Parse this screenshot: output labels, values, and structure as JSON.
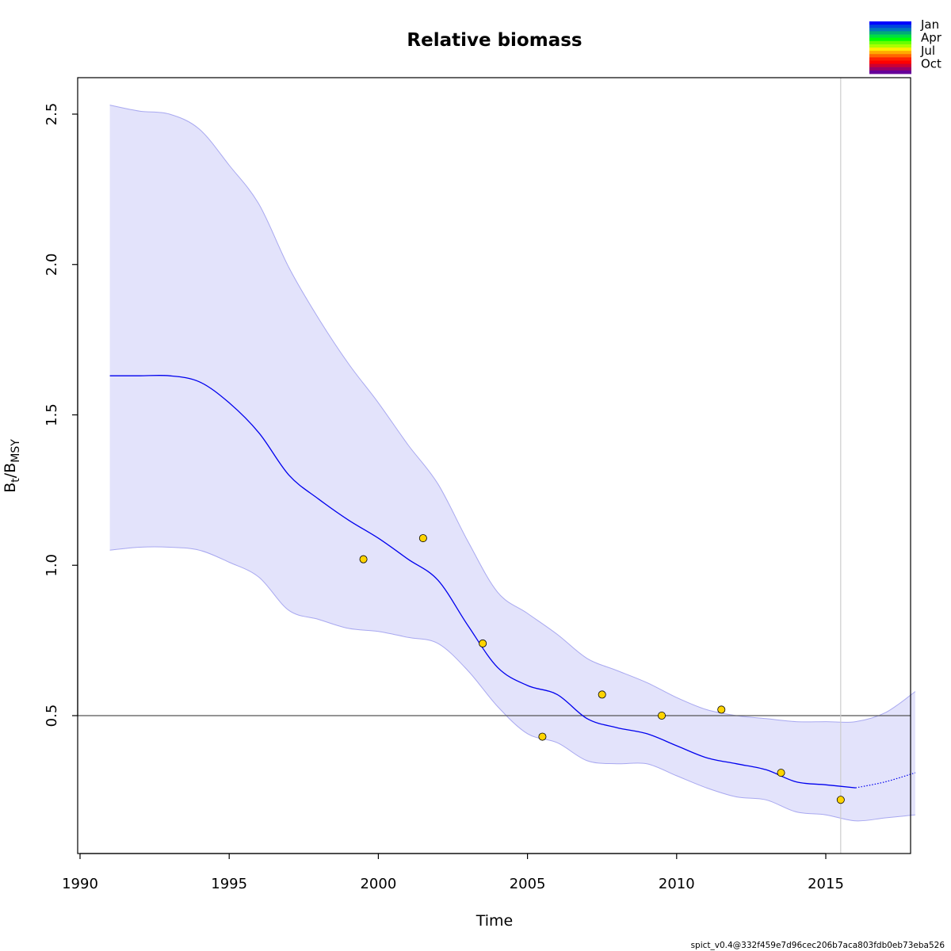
{
  "chart_data": {
    "type": "line",
    "title": "Relative biomass",
    "xlabel": "Time",
    "ylabel": {
      "main": "B",
      "sub1": "t",
      "slash": "/",
      "main2": "B",
      "sub2": "MSY"
    },
    "xlim": [
      1990,
      2019
    ],
    "ylim": [
      0.05,
      2.62
    ],
    "xticks": [
      1990,
      1995,
      2000,
      2005,
      2010,
      2015
    ],
    "xtick_labels": [
      "1990",
      "1995",
      "2000",
      "2005",
      "2010",
      "2015"
    ],
    "yticks": [
      0.5,
      1.0,
      1.5,
      2.0,
      2.5
    ],
    "ytick_labels": [
      "0.5",
      "1.0",
      "1.5",
      "2.0",
      "2.5"
    ],
    "reference_line_y": 0.5,
    "vertical_line_x": 2015.5,
    "colors": {
      "estimate": "#0000ee",
      "band_fill": "#e3e3fb",
      "band_edge": "#a8a8f0",
      "points": "#ffd400",
      "reference": "#555555",
      "vline": "#cccccc"
    },
    "estimate": {
      "x": [
        1991.0,
        1992.0,
        1993.0,
        1994.0,
        1995.0,
        1996.0,
        1997.0,
        1998.0,
        1999.0,
        2000.0,
        2001.0,
        2002.0,
        2003.0,
        2004.0,
        2005.0,
        2006.0,
        2007.0,
        2008.0,
        2009.0,
        2010.0,
        2011.0,
        2012.0,
        2013.0,
        2014.0,
        2015.0,
        2016.0
      ],
      "y": [
        1.63,
        1.63,
        1.63,
        1.61,
        1.54,
        1.44,
        1.3,
        1.22,
        1.15,
        1.09,
        1.02,
        0.95,
        0.8,
        0.66,
        0.6,
        0.57,
        0.49,
        0.46,
        0.44,
        0.4,
        0.36,
        0.34,
        0.32,
        0.28,
        0.27,
        0.26
      ]
    },
    "prediction": {
      "x": [
        2016.0,
        2017.0,
        2018.0
      ],
      "y": [
        0.26,
        0.28,
        0.31
      ]
    },
    "band": {
      "x": [
        1991.0,
        1992.0,
        1993.0,
        1994.0,
        1995.0,
        1996.0,
        1997.0,
        1998.0,
        1999.0,
        2000.0,
        2001.0,
        2002.0,
        2003.0,
        2004.0,
        2005.0,
        2006.0,
        2007.0,
        2008.0,
        2009.0,
        2010.0,
        2011.0,
        2012.0,
        2013.0,
        2014.0,
        2015.0,
        2016.0,
        2017.0,
        2018.0
      ],
      "upper": [
        2.53,
        2.51,
        2.5,
        2.45,
        2.33,
        2.2,
        1.99,
        1.82,
        1.67,
        1.54,
        1.4,
        1.27,
        1.08,
        0.91,
        0.84,
        0.77,
        0.69,
        0.65,
        0.61,
        0.56,
        0.52,
        0.5,
        0.49,
        0.48,
        0.48,
        0.48,
        0.51,
        0.58
      ],
      "lower": [
        1.05,
        1.06,
        1.06,
        1.05,
        1.01,
        0.96,
        0.85,
        0.82,
        0.79,
        0.78,
        0.76,
        0.74,
        0.65,
        0.53,
        0.44,
        0.41,
        0.35,
        0.34,
        0.34,
        0.3,
        0.26,
        0.23,
        0.22,
        0.18,
        0.17,
        0.15,
        0.16,
        0.17
      ]
    },
    "index_points": {
      "x": [
        1999.5,
        2001.5,
        2003.5,
        2005.5,
        2007.5,
        2009.5,
        2011.5,
        2013.5,
        2015.5
      ],
      "y": [
        1.02,
        1.09,
        0.74,
        0.43,
        0.57,
        0.5,
        0.52,
        0.31,
        0.22
      ]
    },
    "season_legend": {
      "labels": [
        "Jan",
        "Apr",
        "Jul",
        "Oct"
      ],
      "colors": [
        "#0000ff",
        "#0044dd",
        "#0077bb",
        "#00aa77",
        "#00dd44",
        "#00ff00",
        "#66ff00",
        "#aaff00",
        "#ffee00",
        "#ffaa00",
        "#ff6600",
        "#ff2200",
        "#ff0000",
        "#cc0033",
        "#990066",
        "#660099"
      ]
    },
    "footnote": "spict_v0.4@332f459e7d96cec206b7aca803fdb0eb73eba526"
  }
}
